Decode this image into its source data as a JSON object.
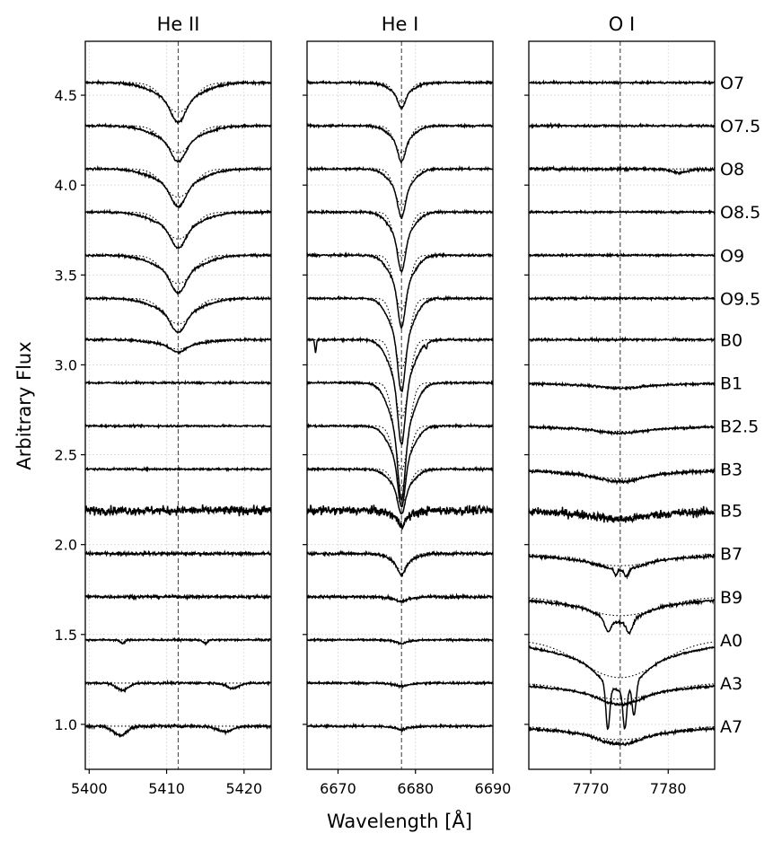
{
  "chart_data": {
    "type": "line",
    "ylabel": "Arbitrary Flux",
    "xlabel": "Wavelength [Å]",
    "ylim": [
      0.75,
      4.8
    ],
    "yticks": [
      1.0,
      1.5,
      2.0,
      2.5,
      3.0,
      3.5,
      4.0,
      4.5
    ],
    "ytick_labels": [
      "1.0",
      "1.5",
      "2.0",
      "2.5",
      "3.0",
      "3.5",
      "4.0",
      "4.5"
    ],
    "grid": true,
    "spectral_types": [
      "O7",
      "O7.5",
      "O8",
      "O8.5",
      "O9",
      "O9.5",
      "B0",
      "B1",
      "B2.5",
      "B3",
      "B5",
      "B7",
      "B9",
      "A0",
      "A3",
      "A7"
    ],
    "offsets": [
      4.57,
      4.33,
      4.09,
      3.85,
      3.61,
      3.37,
      3.14,
      2.9,
      2.66,
      2.42,
      2.19,
      1.95,
      1.71,
      1.47,
      1.23,
      0.99
    ],
    "panels": [
      {
        "title": "He II",
        "xlim": [
          5399.5,
          5423.5
        ],
        "xticks": [
          5400,
          5410,
          5420
        ],
        "xtick_labels": [
          "5400",
          "5410",
          "5420"
        ],
        "line_center": 5411.5,
        "line_width": 0.9,
        "depths": [
          0.22,
          0.2,
          0.21,
          0.2,
          0.21,
          0.19,
          0.07,
          0.0,
          0.0,
          0.0,
          0.0,
          0.0,
          0.0,
          0.0,
          0.0,
          0.0
        ],
        "noise": [
          0.006,
          0.006,
          0.006,
          0.006,
          0.006,
          0.006,
          0.006,
          0.005,
          0.005,
          0.005,
          0.025,
          0.008,
          0.008,
          0.005,
          0.006,
          0.008
        ],
        "extra_features": [
          {
            "row": 14,
            "center": 5404.3,
            "depth": 0.04,
            "width": 0.8
          },
          {
            "row": 14,
            "center": 5418.5,
            "depth": 0.03,
            "width": 0.8
          },
          {
            "row": 15,
            "center": 5404.0,
            "depth": 0.05,
            "width": 0.9
          },
          {
            "row": 15,
            "center": 5417.5,
            "depth": 0.03,
            "width": 1.0
          },
          {
            "row": 13,
            "center": 5404.3,
            "depth": 0.02,
            "width": 0.3
          },
          {
            "row": 13,
            "center": 5415.0,
            "depth": 0.02,
            "width": 0.3
          }
        ]
      },
      {
        "title": "He I",
        "xlim": [
          6666.0,
          6690.0
        ],
        "xticks": [
          6670,
          6680,
          6690
        ],
        "xtick_labels": [
          "6670",
          "6680",
          "6690"
        ],
        "line_center": 6678.2,
        "line_width": 0.45,
        "depths": [
          0.14,
          0.2,
          0.27,
          0.33,
          0.4,
          0.52,
          0.58,
          0.65,
          0.45,
          0.25,
          0.08,
          0.12,
          0.03,
          0.02,
          0.02,
          0.02
        ],
        "noise": [
          0.006,
          0.006,
          0.006,
          0.006,
          0.006,
          0.006,
          0.006,
          0.005,
          0.005,
          0.006,
          0.025,
          0.008,
          0.008,
          0.005,
          0.006,
          0.006
        ],
        "extra_features": [
          {
            "row": 6,
            "center": 6667.1,
            "depth": 0.07,
            "width": 0.1
          },
          {
            "row": 6,
            "center": 6681.4,
            "depth": 0.03,
            "width": 0.1
          }
        ]
      },
      {
        "title": "O I",
        "xlim": [
          7762.0,
          7786.0
        ],
        "xticks": [
          7770,
          7780
        ],
        "xtick_labels": [
          "7770",
          "7780"
        ],
        "line_center": 7773.8,
        "line_width": 2.5,
        "depths": [
          0.0,
          0.0,
          0.0,
          0.0,
          0.0,
          0.0,
          0.0,
          0.03,
          0.04,
          0.07,
          0.05,
          0.09,
          0.14,
          0.28,
          0.12,
          0.1
        ],
        "noise": [
          0.005,
          0.006,
          0.008,
          0.005,
          0.005,
          0.006,
          0.006,
          0.006,
          0.006,
          0.008,
          0.025,
          0.008,
          0.008,
          0.005,
          0.006,
          0.008
        ],
        "extra_features": [
          {
            "row": 13,
            "center": 7772.2,
            "depth": 0.25,
            "width": 0.25
          },
          {
            "row": 13,
            "center": 7774.4,
            "depth": 0.22,
            "width": 0.25
          },
          {
            "row": 13,
            "center": 7775.6,
            "depth": 0.18,
            "width": 0.25
          },
          {
            "row": 12,
            "center": 7772.2,
            "depth": 0.07,
            "width": 0.4
          },
          {
            "row": 12,
            "center": 7775.0,
            "depth": 0.07,
            "width": 0.4
          },
          {
            "row": 11,
            "center": 7773.2,
            "depth": 0.03,
            "width": 0.2
          },
          {
            "row": 11,
            "center": 7774.6,
            "depth": 0.04,
            "width": 0.3
          },
          {
            "row": 2,
            "center": 7781.5,
            "depth": 0.02,
            "width": 1.2
          }
        ]
      }
    ]
  }
}
